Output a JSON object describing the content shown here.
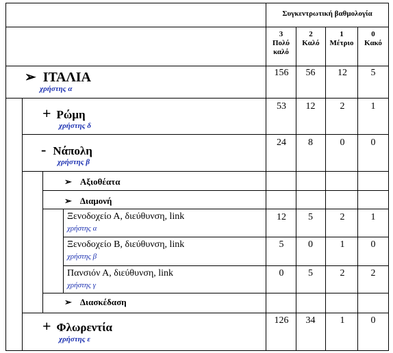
{
  "header": {
    "title": "Συγκεντρωτική βαθμολογία",
    "cols": [
      {
        "num": "3",
        "label1": "Πολύ",
        "label2": "καλό"
      },
      {
        "num": "2",
        "label1": "Καλό",
        "label2": ""
      },
      {
        "num": "1",
        "label1": "Μέτριο",
        "label2": ""
      },
      {
        "num": "0",
        "label1": "Κακό",
        "label2": ""
      }
    ]
  },
  "rows": {
    "italia": {
      "icon": "➢",
      "name": "ΙΤΑΛΙΑ",
      "user": "χρήστης α",
      "vals": [
        "156",
        "56",
        "12",
        "5"
      ]
    },
    "romi": {
      "icon": "+",
      "name": "Ρώμη",
      "user": "χρήστης δ",
      "vals": [
        "53",
        "12",
        "2",
        "1"
      ]
    },
    "napoli": {
      "icon": "-",
      "name": "Νάπολη",
      "user": "χρήστης β",
      "vals": [
        "24",
        "8",
        "0",
        "0"
      ]
    },
    "axiotheata": {
      "icon": "➢",
      "name": "Αξιοθέατα"
    },
    "diamoni": {
      "icon": "➢",
      "name": "Διαμονή"
    },
    "hotelA": {
      "name": "Ξενοδοχείο Α,  διεύθυνση, link",
      "user": "χρήστης α",
      "vals": [
        "12",
        "5",
        "2",
        "1"
      ]
    },
    "hotelB": {
      "name": "Ξενοδοχείο Β,  διεύθυνση, link",
      "user": "χρήστης β",
      "vals": [
        "5",
        "0",
        "1",
        "0"
      ]
    },
    "pension": {
      "name": "Πανσιόν Α, διεύθυνση, link",
      "user": "χρήστης γ",
      "vals": [
        "0",
        "5",
        "2",
        "2"
      ]
    },
    "diaskedasi": {
      "icon": "➢",
      "name": "Διασκέδαση"
    },
    "florentia": {
      "icon": "+",
      "name": "Φλωρεντία",
      "user": "χρήστης ε",
      "vals": [
        "126",
        "34",
        "1",
        "0"
      ]
    }
  }
}
